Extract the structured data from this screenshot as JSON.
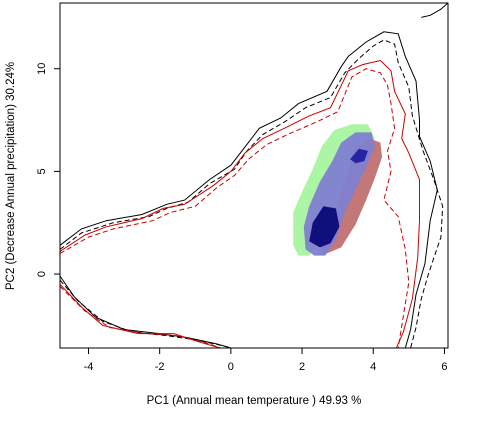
{
  "chart_data": {
    "type": "other",
    "xlabel": "PC1 (Annual mean temperature ) 49.93 %",
    "ylabel": "PC2 (Decrease Annual precipitation) 30.24%",
    "xlim": [
      -4.8,
      6.1
    ],
    "ylim": [
      -3.6,
      13.2
    ],
    "xticks": [
      -4,
      -2,
      0,
      2,
      4,
      6
    ],
    "yticks": [
      0,
      5,
      10
    ],
    "grid": false,
    "colors": {
      "envelope_1": "#000000",
      "envelope_2": "#cc0000",
      "density_green": "#a8f4a0",
      "density_blue_light": "#8080d0",
      "density_blue_dark": "#0a0a78",
      "density_red": "#c07070"
    },
    "density_regions": [
      {
        "name": "green",
        "color": "#a8f4a0",
        "points": [
          [
            1.75,
            2.0
          ],
          [
            1.75,
            3.0
          ],
          [
            2.0,
            4.0
          ],
          [
            2.3,
            5.1
          ],
          [
            2.55,
            6.2
          ],
          [
            2.9,
            7.0
          ],
          [
            3.4,
            7.3
          ],
          [
            3.85,
            7.3
          ],
          [
            4.05,
            6.6
          ],
          [
            3.95,
            5.9
          ],
          [
            3.65,
            5.2
          ],
          [
            3.4,
            4.2
          ],
          [
            3.05,
            3.0
          ],
          [
            2.7,
            1.9
          ],
          [
            2.2,
            0.9
          ],
          [
            1.9,
            0.9
          ],
          [
            1.75,
            1.4
          ]
        ]
      },
      {
        "name": "red",
        "color": "#c07070",
        "points": [
          [
            2.55,
            0.9
          ],
          [
            3.1,
            1.3
          ],
          [
            3.5,
            2.4
          ],
          [
            3.8,
            3.6
          ],
          [
            4.05,
            4.7
          ],
          [
            4.25,
            5.7
          ],
          [
            4.2,
            6.4
          ],
          [
            3.9,
            6.6
          ],
          [
            3.5,
            6.2
          ],
          [
            3.2,
            4.5
          ],
          [
            2.8,
            2.3
          ],
          [
            2.55,
            1.4
          ]
        ]
      },
      {
        "name": "blue-light",
        "color": "#8080d0",
        "points": [
          [
            2.1,
            1.2
          ],
          [
            2.05,
            2.3
          ],
          [
            2.2,
            3.3
          ],
          [
            2.5,
            4.5
          ],
          [
            2.85,
            5.5
          ],
          [
            3.1,
            6.4
          ],
          [
            3.5,
            6.9
          ],
          [
            3.95,
            6.9
          ],
          [
            4.05,
            6.2
          ],
          [
            3.8,
            5.2
          ],
          [
            3.5,
            4.1
          ],
          [
            3.2,
            3.0
          ],
          [
            2.95,
            1.7
          ],
          [
            2.65,
            0.9
          ],
          [
            2.35,
            0.9
          ]
        ]
      },
      {
        "name": "blue-dark",
        "color": "#0a0a78",
        "points": [
          [
            2.2,
            1.6
          ],
          [
            2.3,
            2.5
          ],
          [
            2.6,
            3.3
          ],
          [
            2.95,
            3.2
          ],
          [
            3.05,
            2.3
          ],
          [
            2.8,
            1.5
          ],
          [
            2.5,
            1.3
          ]
        ]
      },
      {
        "name": "blue-dark-top",
        "color": "#2020a0",
        "points": [
          [
            3.35,
            5.6
          ],
          [
            3.6,
            6.1
          ],
          [
            3.85,
            6.0
          ],
          [
            3.75,
            5.5
          ],
          [
            3.5,
            5.4
          ]
        ]
      }
    ],
    "envelopes": [
      {
        "name": "black-solid",
        "color": "#000000",
        "dash": "none",
        "points": [
          [
            -4.8,
            1.4
          ],
          [
            -4.2,
            2.2
          ],
          [
            -3.5,
            2.6
          ],
          [
            -2.5,
            2.9
          ],
          [
            -1.8,
            3.4
          ],
          [
            -1.3,
            3.6
          ],
          [
            -0.6,
            4.6
          ],
          [
            0,
            5.3
          ],
          [
            0.4,
            6.2
          ],
          [
            0.8,
            7.1
          ],
          [
            1.4,
            7.6
          ],
          [
            1.9,
            8.3
          ],
          [
            2.7,
            8.9
          ],
          [
            3.1,
            10.1
          ],
          [
            3.3,
            10.6
          ],
          [
            3.8,
            11.3
          ],
          [
            4.3,
            11.8
          ],
          [
            4.7,
            11.7
          ],
          [
            4.9,
            10.6
          ],
          [
            5.2,
            9.4
          ],
          [
            5.3,
            7.5
          ],
          [
            5.3,
            6.7
          ],
          [
            5.6,
            5.5
          ],
          [
            5.8,
            4.1
          ],
          [
            5.6,
            2.6
          ],
          [
            5.45,
            0.5
          ],
          [
            5.2,
            -1.0
          ],
          [
            5.05,
            -2.7
          ],
          [
            4.9,
            -3.6
          ]
        ]
      },
      {
        "name": "black-dashed",
        "color": "#000000",
        "dash": "5,3",
        "points": [
          [
            -4.8,
            1.2
          ],
          [
            -4.2,
            2.0
          ],
          [
            -3.3,
            2.5
          ],
          [
            -2.3,
            2.8
          ],
          [
            -1.8,
            3.2
          ],
          [
            -1.2,
            3.5
          ],
          [
            -0.6,
            4.4
          ],
          [
            0.1,
            5.1
          ],
          [
            0.45,
            6.0
          ],
          [
            0.9,
            6.8
          ],
          [
            1.5,
            7.4
          ],
          [
            2.1,
            8.1
          ],
          [
            2.8,
            8.6
          ],
          [
            3.2,
            9.8
          ],
          [
            3.6,
            10.5
          ],
          [
            4.0,
            11.1
          ],
          [
            4.3,
            11.4
          ],
          [
            4.6,
            11.2
          ],
          [
            4.7,
            10.3
          ],
          [
            5.0,
            9.1
          ],
          [
            5.1,
            7.7
          ],
          [
            5.4,
            6.0
          ],
          [
            5.7,
            4.6
          ],
          [
            5.95,
            3.3
          ],
          [
            5.9,
            1.8
          ],
          [
            5.55,
            0.0
          ],
          [
            5.35,
            -1.2
          ],
          [
            5.2,
            -2.6
          ],
          [
            5.05,
            -3.6
          ]
        ]
      },
      {
        "name": "red-solid",
        "color": "#cc0000",
        "dash": "none",
        "points": [
          [
            -4.8,
            1.1
          ],
          [
            -4.1,
            1.9
          ],
          [
            -3.5,
            2.3
          ],
          [
            -2.5,
            2.7
          ],
          [
            -1.9,
            3.2
          ],
          [
            -1.3,
            3.4
          ],
          [
            -0.5,
            4.3
          ],
          [
            0.0,
            5.0
          ],
          [
            0.4,
            5.9
          ],
          [
            0.9,
            6.6
          ],
          [
            1.5,
            7.1
          ],
          [
            2.2,
            7.7
          ],
          [
            2.8,
            8.1
          ],
          [
            3.3,
            9.9
          ],
          [
            3.7,
            10.2
          ],
          [
            4.2,
            10.4
          ],
          [
            4.5,
            9.9
          ],
          [
            4.6,
            8.9
          ],
          [
            4.9,
            7.8
          ],
          [
            4.8,
            6.6
          ],
          [
            5.0,
            5.9
          ],
          [
            5.3,
            4.6
          ],
          [
            5.3,
            2.6
          ],
          [
            5.25,
            0.8
          ],
          [
            5.1,
            -1.2
          ],
          [
            4.85,
            -2.8
          ],
          [
            4.65,
            -3.6
          ]
        ]
      },
      {
        "name": "red-dashed",
        "color": "#cc0000",
        "dash": "5,3",
        "points": [
          [
            -4.8,
            1.0
          ],
          [
            -4.0,
            1.8
          ],
          [
            -3.3,
            2.2
          ],
          [
            -2.2,
            2.6
          ],
          [
            -1.7,
            3.0
          ],
          [
            -1.0,
            3.3
          ],
          [
            -0.4,
            4.2
          ],
          [
            0.1,
            4.8
          ],
          [
            0.5,
            5.6
          ],
          [
            1.0,
            6.3
          ],
          [
            1.6,
            6.8
          ],
          [
            2.4,
            7.4
          ],
          [
            3.0,
            7.9
          ],
          [
            3.4,
            9.6
          ],
          [
            3.8,
            10.0
          ],
          [
            4.2,
            9.8
          ],
          [
            4.4,
            9.2
          ],
          [
            4.5,
            8.3
          ],
          [
            4.6,
            7.1
          ],
          [
            4.4,
            6.0
          ],
          [
            4.5,
            5.0
          ],
          [
            4.3,
            3.6
          ],
          [
            4.7,
            2.8
          ],
          [
            4.9,
            1.2
          ],
          [
            5.0,
            -0.4
          ],
          [
            4.85,
            -2.0
          ],
          [
            4.7,
            -3.6
          ]
        ]
      },
      {
        "name": "black-solid-lower",
        "color": "#000000",
        "dash": "none",
        "points": [
          [
            -4.8,
            -0.1
          ],
          [
            -4.4,
            -1.1
          ],
          [
            -3.8,
            -2.1
          ],
          [
            -3.0,
            -2.7
          ],
          [
            -2.0,
            -2.9
          ],
          [
            -1.2,
            -3.1
          ],
          [
            -0.4,
            -3.4
          ],
          [
            0.0,
            -3.6
          ]
        ]
      },
      {
        "name": "black-dashed-lower",
        "color": "#000000",
        "dash": "5,3",
        "points": [
          [
            -4.8,
            -0.3
          ],
          [
            -4.3,
            -1.3
          ],
          [
            -3.6,
            -2.3
          ],
          [
            -2.8,
            -2.8
          ],
          [
            -1.8,
            -3.0
          ],
          [
            -1.0,
            -3.2
          ],
          [
            -0.2,
            -3.5
          ],
          [
            0.0,
            -3.6
          ]
        ]
      },
      {
        "name": "red-solid-lower",
        "color": "#cc0000",
        "dash": "none",
        "points": [
          [
            -4.8,
            -0.5
          ],
          [
            -4.2,
            -1.6
          ],
          [
            -3.6,
            -2.5
          ],
          [
            -2.6,
            -2.9
          ],
          [
            -1.6,
            -2.9
          ],
          [
            -0.9,
            -3.3
          ],
          [
            -0.3,
            -3.6
          ]
        ]
      },
      {
        "name": "red-dashed-lower",
        "color": "#cc0000",
        "dash": "5,3",
        "points": [
          [
            -4.8,
            -0.6
          ],
          [
            -4.1,
            -1.8
          ],
          [
            -3.4,
            -2.6
          ],
          [
            -2.4,
            -2.9
          ],
          [
            -1.5,
            -3.0
          ],
          [
            -0.6,
            -3.4
          ],
          [
            -0.3,
            -3.6
          ]
        ]
      },
      {
        "name": "black-solid-topright",
        "color": "#000000",
        "dash": "none",
        "points": [
          [
            5.35,
            12.5
          ],
          [
            5.6,
            12.6
          ],
          [
            5.9,
            12.9
          ],
          [
            6.1,
            13.2
          ]
        ]
      }
    ]
  }
}
